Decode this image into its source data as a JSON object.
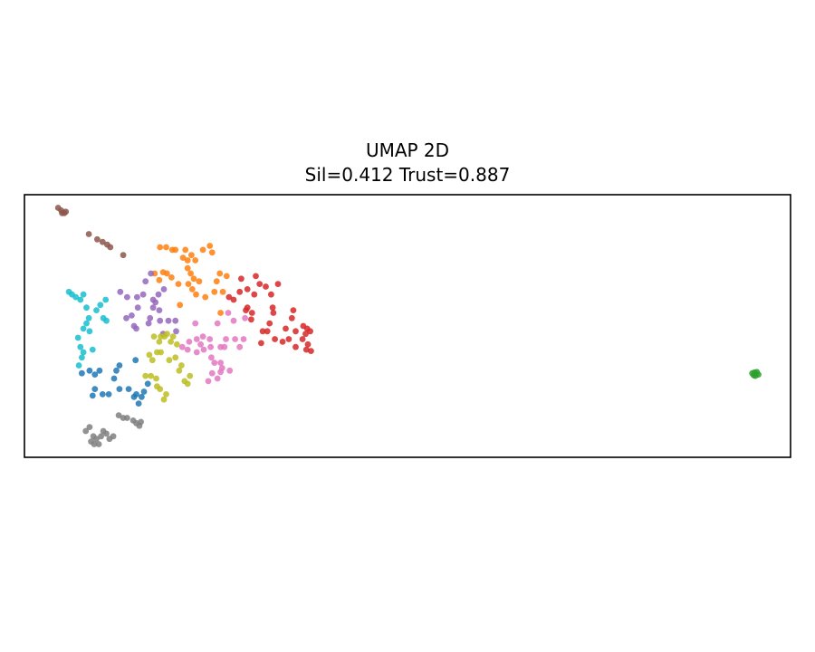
{
  "chart_data": {
    "type": "scatter",
    "title": "UMAP 2D",
    "subtitle": "Sil=0.412  Trust=0.887",
    "xlabel": "",
    "ylabel": "",
    "xlim": [
      0,
      100
    ],
    "ylim": [
      0,
      100
    ],
    "show_ticks": false,
    "grid": false,
    "series": [
      {
        "color": "#1f77b4",
        "points": [
          [
            7.5,
            32
          ],
          [
            8.5,
            33
          ],
          [
            9.2,
            31.5
          ],
          [
            9.8,
            33
          ],
          [
            8.9,
            23.5
          ],
          [
            9.2,
            26
          ],
          [
            10.2,
            24
          ],
          [
            11,
            24
          ],
          [
            11.7,
            30
          ],
          [
            12,
            33
          ],
          [
            12.4,
            26
          ],
          [
            12.4,
            35
          ],
          [
            13.6,
            26
          ],
          [
            14.3,
            23
          ],
          [
            14.6,
            24
          ],
          [
            14.9,
            20.5
          ],
          [
            15.3,
            23
          ],
          [
            15.6,
            25
          ],
          [
            16.1,
            28
          ],
          [
            14.5,
            37
          ]
        ]
      },
      {
        "color": "#ff7f0e",
        "points": [
          [
            17,
            70
          ],
          [
            17.6,
            67.5
          ],
          [
            18.1,
            70.5
          ],
          [
            18.6,
            70
          ],
          [
            19.2,
            68.5
          ],
          [
            20.1,
            66
          ],
          [
            21.4,
            66
          ],
          [
            22.1,
            68
          ],
          [
            22.8,
            67
          ],
          [
            21.7,
            70
          ],
          [
            22.4,
            62
          ],
          [
            20.7,
            76
          ],
          [
            21.3,
            75
          ],
          [
            20.3,
            58
          ],
          [
            21.9,
            64
          ],
          [
            21.3,
            72
          ],
          [
            19.3,
            79
          ],
          [
            18.5,
            80
          ],
          [
            19.7,
            79
          ],
          [
            17.7,
            80
          ],
          [
            21,
            79
          ],
          [
            21.8,
            77
          ],
          [
            22.3,
            75
          ],
          [
            23.3,
            79
          ],
          [
            24.2,
            80.5
          ],
          [
            24.5,
            78
          ],
          [
            25.1,
            67
          ],
          [
            25.5,
            70
          ],
          [
            25.9,
            63
          ],
          [
            26.4,
            69
          ],
          [
            23.6,
            61
          ],
          [
            24.8,
            63
          ],
          [
            25.6,
            55
          ]
        ]
      },
      {
        "color": "#2ca02c",
        "points": [
          [
            95,
            32
          ],
          [
            95.4,
            31
          ],
          [
            95.6,
            32.5
          ],
          [
            95.2,
            31.2
          ],
          [
            95.8,
            31.5
          ],
          [
            95.3,
            32.3
          ]
        ]
      },
      {
        "color": "#d62728",
        "points": [
          [
            26.7,
            61
          ],
          [
            27.3,
            60
          ],
          [
            28.1,
            63
          ],
          [
            28.3,
            68
          ],
          [
            29.1,
            64
          ],
          [
            30,
            62
          ],
          [
            30.2,
            69
          ],
          [
            30.7,
            66
          ],
          [
            28.9,
            56
          ],
          [
            29.1,
            57
          ],
          [
            29.6,
            52.5
          ],
          [
            31.7,
            48
          ],
          [
            31.1,
            48
          ],
          [
            29.7,
            55
          ],
          [
            31.5,
            65
          ],
          [
            32.2,
            62
          ],
          [
            33.1,
            66
          ],
          [
            32.5,
            55
          ],
          [
            32,
            51
          ],
          [
            32.4,
            57
          ],
          [
            33.7,
            44
          ],
          [
            34.1,
            49
          ],
          [
            34.5,
            45
          ],
          [
            35.4,
            48
          ],
          [
            34.9,
            53
          ],
          [
            35.1,
            56
          ],
          [
            35.4,
            42
          ],
          [
            36.3,
            45
          ],
          [
            36.7,
            47
          ],
          [
            36.4,
            50
          ],
          [
            36.9,
            49
          ],
          [
            37.3,
            48
          ],
          [
            36.8,
            41
          ],
          [
            37.4,
            40.5
          ],
          [
            37,
            43
          ],
          [
            32.7,
            45
          ],
          [
            30.9,
            43.5
          ]
        ]
      },
      {
        "color": "#9467bd",
        "points": [
          [
            12.5,
            63
          ],
          [
            13.4,
            61
          ],
          [
            14.7,
            61
          ],
          [
            13.3,
            53
          ],
          [
            14,
            54
          ],
          [
            14.8,
            57
          ],
          [
            15.5,
            62
          ],
          [
            15.8,
            67
          ],
          [
            16.5,
            70
          ],
          [
            16.8,
            57
          ],
          [
            17.6,
            56
          ],
          [
            17.1,
            59
          ],
          [
            17.5,
            62
          ],
          [
            18.2,
            64
          ],
          [
            17.7,
            52
          ],
          [
            16.4,
            53
          ],
          [
            16.2,
            51
          ],
          [
            18.1,
            47
          ],
          [
            18.8,
            52
          ],
          [
            19.7,
            52
          ],
          [
            19.8,
            48
          ],
          [
            16.8,
            60
          ],
          [
            14.3,
            50
          ],
          [
            14.6,
            49
          ]
        ]
      },
      {
        "color": "#8c564b",
        "points": [
          [
            4.4,
            95
          ],
          [
            4.8,
            94
          ],
          [
            5.2,
            93
          ],
          [
            5.4,
            93.5
          ],
          [
            4.9,
            93
          ],
          [
            8.4,
            85
          ],
          [
            9.5,
            83
          ],
          [
            10.2,
            82
          ],
          [
            10.8,
            81
          ],
          [
            11.2,
            80
          ],
          [
            12.9,
            77
          ]
        ]
      },
      {
        "color": "#e377c2",
        "points": [
          [
            20.6,
            42
          ],
          [
            21.3,
            41
          ],
          [
            22.5,
            45
          ],
          [
            22.3,
            51
          ],
          [
            22.5,
            40
          ],
          [
            23,
            43
          ],
          [
            23.4,
            41
          ],
          [
            24.2,
            45
          ],
          [
            24.3,
            42
          ],
          [
            24.4,
            38
          ],
          [
            24.8,
            36
          ],
          [
            25.6,
            36
          ],
          [
            25.6,
            42
          ],
          [
            26.1,
            42
          ],
          [
            26.3,
            45
          ],
          [
            26.6,
            55
          ],
          [
            27.3,
            52
          ],
          [
            28.1,
            42
          ],
          [
            28.6,
            45
          ],
          [
            28.8,
            53
          ],
          [
            25.2,
            51
          ],
          [
            27.5,
            45
          ],
          [
            25.8,
            34
          ],
          [
            25.2,
            30
          ],
          [
            24.5,
            32
          ],
          [
            24,
            29
          ],
          [
            25.6,
            32.5
          ],
          [
            26.8,
            33
          ],
          [
            21.5,
            44
          ],
          [
            23.3,
            46
          ]
        ]
      },
      {
        "color": "#7f7f7f",
        "points": [
          [
            8,
            10
          ],
          [
            8.5,
            11.5
          ],
          [
            9,
            8
          ],
          [
            8.7,
            6
          ],
          [
            9.1,
            5
          ],
          [
            9.4,
            7
          ],
          [
            9.7,
            5
          ],
          [
            10,
            8
          ],
          [
            10.3,
            10
          ],
          [
            10.7,
            9
          ],
          [
            11.1,
            7
          ],
          [
            11.6,
            8
          ],
          [
            12.3,
            16
          ],
          [
            12.9,
            15
          ],
          [
            13.4,
            15
          ],
          [
            14.2,
            14
          ],
          [
            14.6,
            13
          ],
          [
            15,
            12
          ],
          [
            15.2,
            13.5
          ]
        ]
      },
      {
        "color": "#bcbd22",
        "points": [
          [
            15.8,
            31
          ],
          [
            16.5,
            31
          ],
          [
            17.2,
            30
          ],
          [
            17.3,
            27
          ],
          [
            17.7,
            26
          ],
          [
            18.2,
            22
          ],
          [
            18.5,
            24
          ],
          [
            18.9,
            37
          ],
          [
            16.7,
            37
          ],
          [
            16.3,
            39
          ],
          [
            17.3,
            40
          ],
          [
            17.8,
            40
          ],
          [
            17.8,
            46
          ],
          [
            18.3,
            46
          ],
          [
            18.6,
            47
          ],
          [
            19.4,
            46
          ],
          [
            19.1,
            44
          ],
          [
            19.9,
            43
          ],
          [
            19.7,
            38
          ],
          [
            20.5,
            35
          ],
          [
            20.2,
            33
          ],
          [
            20.9,
            29
          ],
          [
            21.6,
            31
          ],
          [
            21.3,
            28
          ],
          [
            17.6,
            44
          ],
          [
            16.9,
            46
          ]
        ]
      },
      {
        "color": "#17becf",
        "points": [
          [
            5.8,
            63
          ],
          [
            6.2,
            62
          ],
          [
            6.7,
            61
          ],
          [
            7.3,
            60
          ],
          [
            7.7,
            62
          ],
          [
            8.1,
            57
          ],
          [
            8.4,
            53
          ],
          [
            8.1,
            51
          ],
          [
            7.7,
            49
          ],
          [
            7,
            45.5
          ],
          [
            7.3,
            42
          ],
          [
            7.7,
            40
          ],
          [
            7.5,
            38
          ],
          [
            7.1,
            35
          ],
          [
            8.5,
            48
          ],
          [
            8.9,
            41
          ],
          [
            9.4,
            56
          ],
          [
            9.9,
            58
          ],
          [
            10.3,
            53
          ],
          [
            10.6,
            60
          ],
          [
            10.7,
            52
          ]
        ]
      }
    ]
  }
}
